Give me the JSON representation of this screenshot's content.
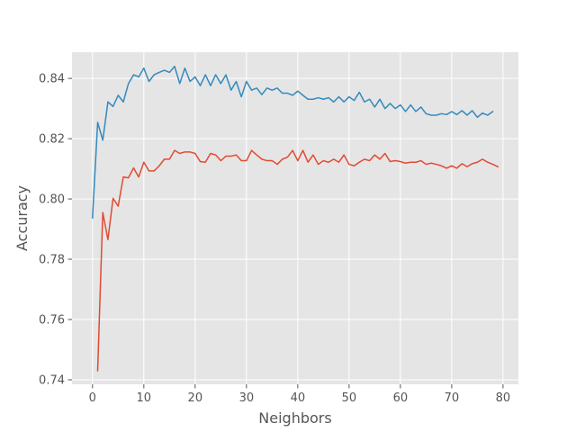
{
  "chart_data": {
    "type": "line",
    "title": "",
    "xlabel": "Neighbors",
    "ylabel": "Accuracy",
    "xlim": [
      -4,
      83
    ],
    "ylim": [
      0.7385,
      0.8487
    ],
    "grid": true,
    "style": "ggplot",
    "x_ticks": [
      0,
      10,
      20,
      30,
      40,
      50,
      60,
      70,
      80
    ],
    "x_tick_labels": [
      "0",
      "10",
      "20",
      "30",
      "40",
      "50",
      "60",
      "70",
      "80"
    ],
    "y_ticks": [
      0.74,
      0.76,
      0.78,
      0.8,
      0.82,
      0.84
    ],
    "y_tick_labels": [
      "0.74",
      "0.76",
      "0.78",
      "0.80",
      "0.82",
      "0.84"
    ],
    "series": [
      {
        "color": "#348ABD",
        "x_start": 0,
        "values": [
          0.7937,
          0.8254,
          0.8195,
          0.8322,
          0.8307,
          0.8344,
          0.8322,
          0.8383,
          0.8412,
          0.8405,
          0.8434,
          0.839,
          0.8412,
          0.842,
          0.8427,
          0.842,
          0.844,
          0.8383,
          0.8434,
          0.839,
          0.8405,
          0.8376,
          0.8412,
          0.8376,
          0.8412,
          0.8383,
          0.8412,
          0.8361,
          0.839,
          0.8339,
          0.839,
          0.8361,
          0.8368,
          0.8346,
          0.8368,
          0.8361,
          0.8368,
          0.8351,
          0.8351,
          0.8344,
          0.8358,
          0.8344,
          0.8331,
          0.8331,
          0.8336,
          0.8331,
          0.8336,
          0.8322,
          0.8339,
          0.8322,
          0.8339,
          0.8327,
          0.8354,
          0.8322,
          0.8331,
          0.8305,
          0.8331,
          0.83,
          0.8317,
          0.83,
          0.8312,
          0.829,
          0.8312,
          0.829,
          0.8305,
          0.8283,
          0.8278,
          0.8278,
          0.8283,
          0.828,
          0.829,
          0.828,
          0.8293,
          0.8278,
          0.8293,
          0.8271,
          0.8285,
          0.8278,
          0.829
        ]
      },
      {
        "color": "#E24A33",
        "x_start": 1,
        "values": [
          0.743,
          0.7955,
          0.7865,
          0.8002,
          0.7976,
          0.8073,
          0.807,
          0.8103,
          0.8073,
          0.8122,
          0.8093,
          0.8093,
          0.811,
          0.8132,
          0.8132,
          0.8161,
          0.8151,
          0.8156,
          0.8156,
          0.8151,
          0.8124,
          0.8122,
          0.8151,
          0.8146,
          0.8127,
          0.8142,
          0.8142,
          0.8146,
          0.8127,
          0.8127,
          0.8161,
          0.8146,
          0.8132,
          0.8127,
          0.8127,
          0.8115,
          0.8132,
          0.8139,
          0.8161,
          0.8127,
          0.8161,
          0.8122,
          0.8146,
          0.8115,
          0.8127,
          0.8122,
          0.8132,
          0.8122,
          0.8146,
          0.8115,
          0.811,
          0.8122,
          0.8132,
          0.8127,
          0.8146,
          0.8132,
          0.8151,
          0.8124,
          0.8127,
          0.8124,
          0.8119,
          0.8122,
          0.8122,
          0.8127,
          0.8115,
          0.8119,
          0.8115,
          0.811,
          0.8102,
          0.811,
          0.8102,
          0.8117,
          0.8107,
          0.8117,
          0.8122,
          0.8132,
          0.8122,
          0.8115,
          0.8107
        ]
      }
    ]
  }
}
